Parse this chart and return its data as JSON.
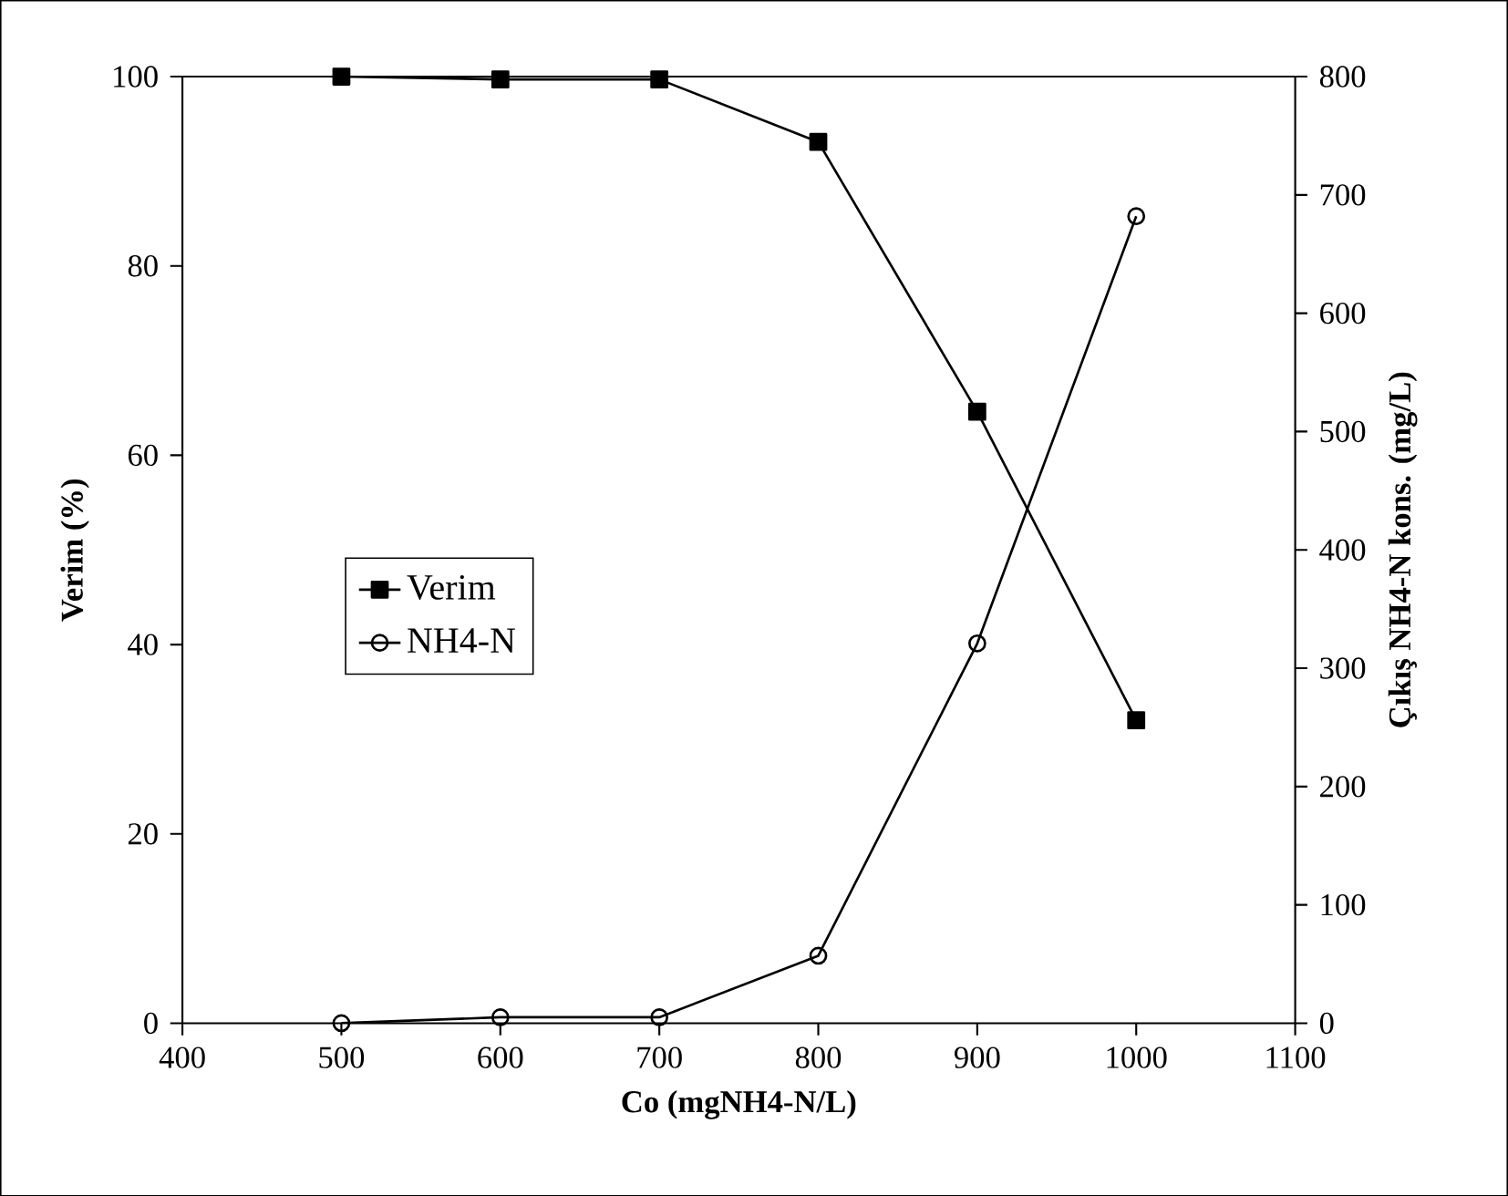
{
  "chart_data": {
    "type": "line",
    "xlabel": "Co (mgNH4-N/L)",
    "ylabel": "Verim (%)",
    "y2label": "Çıkış NH4-N kons. (mg/L)",
    "x": [
      500,
      600,
      700,
      800,
      900,
      1000
    ],
    "series": [
      {
        "name": "Verim",
        "color": "#000000",
        "marker": "square",
        "values": [
          100,
          99.7,
          99.7,
          93.1,
          64.6,
          32.0
        ]
      },
      {
        "name": "NH4-N",
        "color": "#000000",
        "marker": "circle",
        "axis": "y2",
        "values": [
          0,
          5,
          5,
          57,
          321,
          682
        ]
      }
    ],
    "xlim": [
      400,
      1100
    ],
    "xticks": [
      400,
      500,
      600,
      700,
      800,
      900,
      1000,
      1100
    ],
    "ylim": [
      0,
      100
    ],
    "yticks": [
      0,
      20,
      40,
      60,
      80,
      100
    ],
    "y2lim": [
      0,
      800
    ],
    "y2ticks": [
      0,
      100,
      200,
      300,
      400,
      500,
      600,
      700,
      800
    ],
    "legend": "left",
    "grid": false,
    "line_style": "solid"
  }
}
